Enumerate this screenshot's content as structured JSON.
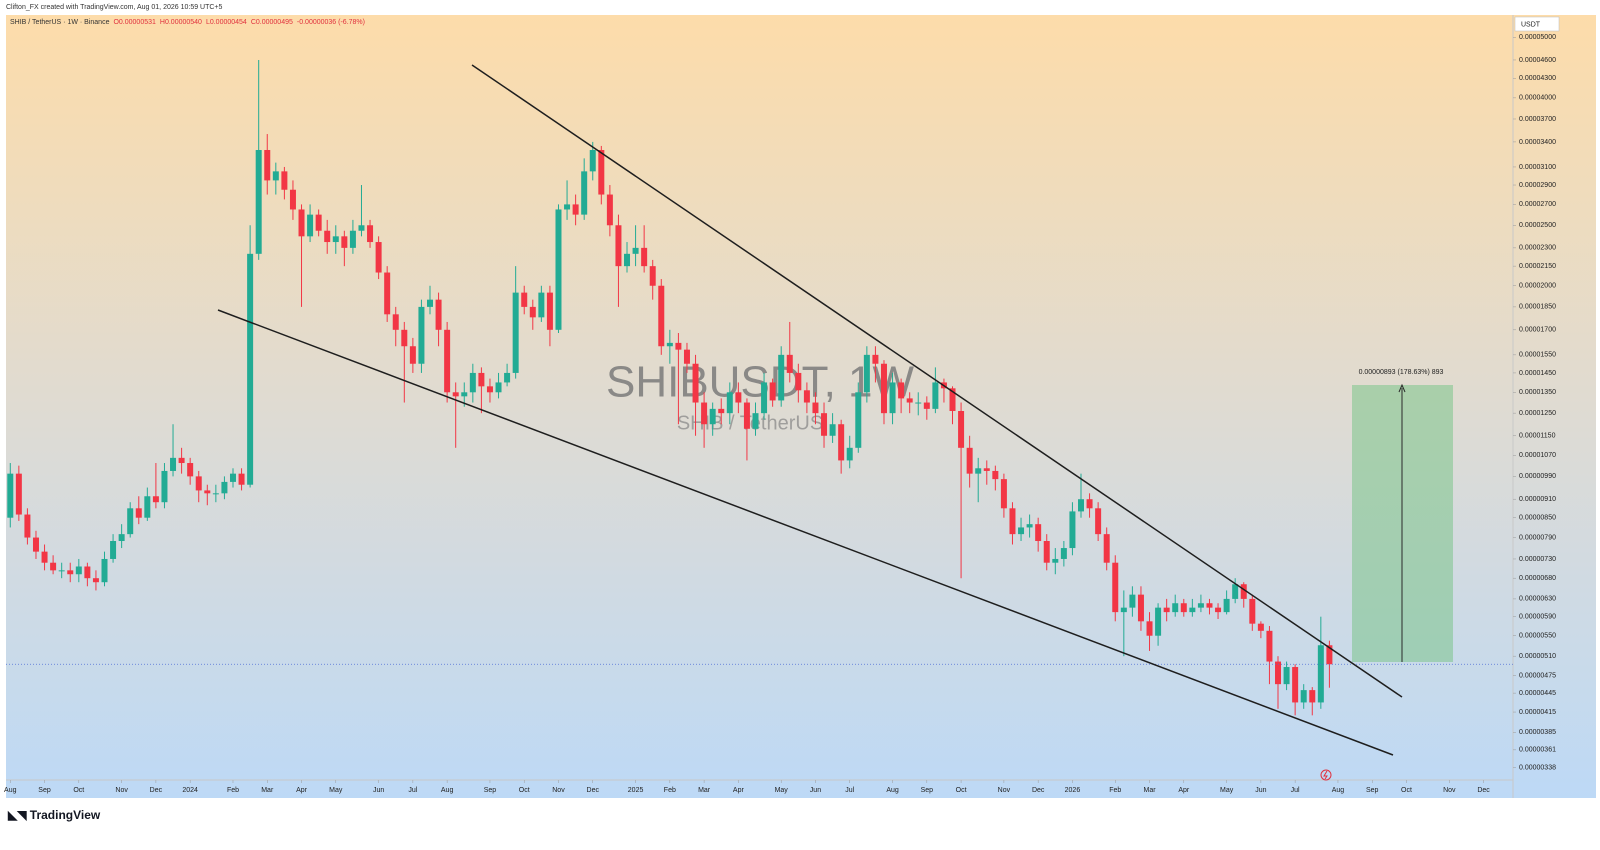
{
  "chart_data": {
    "type": "candlestick",
    "credit": "Clifton_FX created with TradingView.com, Aug 01, 2026 10:59 UTC+5",
    "symbol": "SHIB / TetherUS · 1W · Binance",
    "legend": {
      "open": "O0.00000531",
      "high": "H0.00000540",
      "low": "L0.00000454",
      "close": "C0.00000495",
      "change": "-0.00000036 (-6.78%)"
    },
    "watermark": "SHIBUSDT, 1W",
    "watermark_sub": "SHIB / TetherUS",
    "measure_label": "0.00000893 (178.63%) 893",
    "currency": "USDT",
    "brand": "TradingView",
    "log_scale": true,
    "up_color": "#22ab94",
    "down_color": "#f23645",
    "price_line_color": "#4f6fd6",
    "xlim": [
      -0.5,
      174.5
    ],
    "ylim": [
      3.23e-06,
      5.43e-05
    ],
    "xticks": [
      {
        "value": 0,
        "label": "Aug"
      },
      {
        "value": 4,
        "label": "Sep"
      },
      {
        "value": 8,
        "label": "Oct"
      },
      {
        "value": 13,
        "label": "Nov"
      },
      {
        "value": 17,
        "label": "Dec"
      },
      {
        "value": 21,
        "label": "2024"
      },
      {
        "value": 26,
        "label": "Feb"
      },
      {
        "value": 30,
        "label": "Mar"
      },
      {
        "value": 34,
        "label": "Apr"
      },
      {
        "value": 38,
        "label": "May"
      },
      {
        "value": 43,
        "label": "Jun"
      },
      {
        "value": 47,
        "label": "Jul"
      },
      {
        "value": 51,
        "label": "Aug"
      },
      {
        "value": 56,
        "label": "Sep"
      },
      {
        "value": 60,
        "label": "Oct"
      },
      {
        "value": 64,
        "label": "Nov"
      },
      {
        "value": 68,
        "label": "Dec"
      },
      {
        "value": 73,
        "label": "2025"
      },
      {
        "value": 77,
        "label": "Feb"
      },
      {
        "value": 81,
        "label": "Mar"
      },
      {
        "value": 85,
        "label": "Apr"
      },
      {
        "value": 90,
        "label": "May"
      },
      {
        "value": 94,
        "label": "Jun"
      },
      {
        "value": 98,
        "label": "Jul"
      },
      {
        "value": 103,
        "label": "Aug"
      },
      {
        "value": 107,
        "label": "Sep"
      },
      {
        "value": 111,
        "label": "Oct"
      },
      {
        "value": 116,
        "label": "Nov"
      },
      {
        "value": 120,
        "label": "Dec"
      },
      {
        "value": 124,
        "label": "2026"
      },
      {
        "value": 129,
        "label": "Feb"
      },
      {
        "value": 133,
        "label": "Mar"
      },
      {
        "value": 137,
        "label": "Apr"
      },
      {
        "value": 142,
        "label": "May"
      },
      {
        "value": 146,
        "label": "Jun"
      },
      {
        "value": 150,
        "label": "Jul"
      },
      {
        "value": 155,
        "label": "Aug"
      },
      {
        "value": 159,
        "label": "Sep"
      },
      {
        "value": 163,
        "label": "Oct"
      },
      {
        "value": 168,
        "label": "Nov"
      },
      {
        "value": 172,
        "label": "Dec"
      }
    ],
    "yticks": [
      {
        "value": 5e-05,
        "label": "0.00005000"
      },
      {
        "value": 4.6e-05,
        "label": "0.00004600"
      },
      {
        "value": 4.3e-05,
        "label": "0.00004300"
      },
      {
        "value": 4e-05,
        "label": "0.00004000"
      },
      {
        "value": 3.7e-05,
        "label": "0.00003700"
      },
      {
        "value": 3.4e-05,
        "label": "0.00003400"
      },
      {
        "value": 3.1e-05,
        "label": "0.00003100"
      },
      {
        "value": 2.9e-05,
        "label": "0.00002900"
      },
      {
        "value": 2.7e-05,
        "label": "0.00002700"
      },
      {
        "value": 2.5e-05,
        "label": "0.00002500"
      },
      {
        "value": 2.3e-05,
        "label": "0.00002300"
      },
      {
        "value": 2.15e-05,
        "label": "0.00002150"
      },
      {
        "value": 2e-05,
        "label": "0.00002000"
      },
      {
        "value": 1.85e-05,
        "label": "0.00001850"
      },
      {
        "value": 1.7e-05,
        "label": "0.00001700"
      },
      {
        "value": 1.55e-05,
        "label": "0.00001550"
      },
      {
        "value": 1.45e-05,
        "label": "0.00001450"
      },
      {
        "value": 1.35e-05,
        "label": "0.00001350"
      },
      {
        "value": 1.25e-05,
        "label": "0.00001250"
      },
      {
        "value": 1.15e-05,
        "label": "0.00001150"
      },
      {
        "value": 1.07e-05,
        "label": "0.00001070"
      },
      {
        "value": 9.9e-06,
        "label": "0.00000990"
      },
      {
        "value": 9.1e-06,
        "label": "0.00000910"
      },
      {
        "value": 8.5e-06,
        "label": "0.00000850"
      },
      {
        "value": 7.9e-06,
        "label": "0.00000790"
      },
      {
        "value": 7.3e-06,
        "label": "0.00000730"
      },
      {
        "value": 6.8e-06,
        "label": "0.00000680"
      },
      {
        "value": 6.3e-06,
        "label": "0.00000630"
      },
      {
        "value": 5.9e-06,
        "label": "0.00000590"
      },
      {
        "value": 5.5e-06,
        "label": "0.00000550"
      },
      {
        "value": 5.1e-06,
        "label": "0.00000510"
      },
      {
        "value": 4.75e-06,
        "label": "0.00000475"
      },
      {
        "value": 4.45e-06,
        "label": "0.00000445"
      },
      {
        "value": 4.15e-06,
        "label": "0.00000415"
      },
      {
        "value": 3.85e-06,
        "label": "0.00000385"
      },
      {
        "value": 3.61e-06,
        "label": "0.00000361"
      },
      {
        "value": 3.38e-06,
        "label": "0.00000338"
      }
    ],
    "open": [
      8.5e-06,
      1e-05,
      8.6e-06,
      7.9e-06,
      7.5e-06,
      7.2e-06,
      7e-06,
      7e-06,
      6.9e-06,
      7.1e-06,
      6.8e-06,
      6.7e-06,
      7.3e-06,
      7.8e-06,
      8e-06,
      8.8e-06,
      8.5e-06,
      9.2e-06,
      9e-06,
      1.01e-05,
      1.06e-05,
      1.04e-05,
      9.9e-06,
      9.4e-06,
      9.3e-06,
      9.3e-06,
      9.7e-06,
      1e-05,
      9.6e-06,
      2.25e-05,
      3.3e-05,
      2.95e-05,
      3.05e-05,
      2.85e-05,
      2.65e-05,
      2.4e-05,
      2.6e-05,
      2.45e-05,
      2.35e-05,
      2.4e-05,
      2.3e-05,
      2.45e-05,
      2.5e-05,
      2.35e-05,
      2.1e-05,
      1.8e-05,
      1.7e-05,
      1.6e-05,
      1.5e-05,
      1.85e-05,
      1.9e-05,
      1.7e-05,
      1.35e-05,
      1.33e-05,
      1.35e-05,
      1.45e-05,
      1.38e-05,
      1.35e-05,
      1.4e-05,
      1.45e-05,
      1.95e-05,
      1.85e-05,
      1.78e-05,
      1.95e-05,
      1.7e-05,
      2.65e-05,
      2.7e-05,
      2.6e-05,
      3.05e-05,
      3.3e-05,
      2.8e-05,
      2.5e-05,
      2.15e-05,
      2.25e-05,
      2.3e-05,
      2.15e-05,
      2e-05,
      1.6e-05,
      1.62e-05,
      1.58e-05,
      1.5e-05,
      1.3e-05,
      1.2e-05,
      1.27e-05,
      1.25e-05,
      1.35e-05,
      1.3e-05,
      1.18e-05,
      1.25e-05,
      1.4e-05,
      1.31e-05,
      1.55e-05,
      1.45e-05,
      1.36e-05,
      1.3e-05,
      1.25e-05,
      1.15e-05,
      1.2e-05,
      1.05e-05,
      1.1e-05,
      1.35e-05,
      1.55e-05,
      1.5e-05,
      1.25e-05,
      1.4e-05,
      1.32e-05,
      1.3e-05,
      1.3e-05,
      1.27e-05,
      1.4e-05,
      1.37e-05,
      1.26e-05,
      1.1e-05,
      1e-05,
      1.02e-05,
      1.01e-05,
      9.8e-06,
      8.8e-06,
      8e-06,
      8.2e-06,
      8.3e-06,
      7.8e-06,
      7.2e-06,
      7.3e-06,
      7.6e-06,
      8.7e-06,
      9.1e-06,
      8.8e-06,
      8e-06,
      7.2e-06,
      6e-06,
      6.1e-06,
      6.4e-06,
      5.8e-06,
      5.5e-06,
      6.1e-06,
      6e-06,
      6.2e-06,
      6e-06,
      6.1e-06,
      6.2e-06,
      6.1e-06,
      6e-06,
      6.3e-06,
      6.65e-06,
      6.3e-06,
      5.75e-06,
      5.6e-06,
      5e-06,
      4.6e-06,
      4.9e-06,
      4.3e-06,
      4.5e-06,
      4.3e-06,
      5.31e-06
    ],
    "high": [
      1.04e-05,
      1.03e-05,
      8.8e-06,
      8.1e-06,
      7.7e-06,
      7.4e-06,
      7.2e-06,
      7.2e-06,
      7.3e-06,
      7.2e-06,
      7e-06,
      7.5e-06,
      8e-06,
      8.3e-06,
      9e-06,
      9.2e-06,
      9.5e-06,
      1.04e-05,
      1.04e-05,
      1.2e-05,
      1.1e-05,
      1.06e-05,
      1.01e-05,
      9.6e-06,
      9.6e-06,
      9.9e-06,
      1.02e-05,
      1.02e-05,
      2.5e-05,
      4.6e-05,
      3.5e-05,
      3.15e-05,
      3.1e-05,
      2.95e-05,
      2.7e-05,
      2.7e-05,
      2.65e-05,
      2.55e-05,
      2.5e-05,
      2.45e-05,
      2.55e-05,
      2.9e-05,
      2.55e-05,
      2.4e-05,
      2.15e-05,
      1.85e-05,
      1.75e-05,
      1.65e-05,
      1.9e-05,
      2e-05,
      1.95e-05,
      1.75e-05,
      1.4e-05,
      1.4e-05,
      1.5e-05,
      1.48e-05,
      1.42e-05,
      1.45e-05,
      1.5e-05,
      2.15e-05,
      2e-05,
      1.9e-05,
      2e-05,
      2e-05,
      2.7e-05,
      2.95e-05,
      2.8e-05,
      3.2e-05,
      3.4e-05,
      3.35e-05,
      2.9e-05,
      2.6e-05,
      2.35e-05,
      2.5e-05,
      2.5e-05,
      2.2e-05,
      2.05e-05,
      1.7e-05,
      1.68e-05,
      1.62e-05,
      1.55e-05,
      1.35e-05,
      1.3e-05,
      1.32e-05,
      1.4e-05,
      1.4e-05,
      1.32e-05,
      1.3e-05,
      1.45e-05,
      1.42e-05,
      1.6e-05,
      1.75e-05,
      1.5e-05,
      1.4e-05,
      1.35e-05,
      1.3e-05,
      1.25e-05,
      1.22e-05,
      1.15e-05,
      1.4e-05,
      1.6e-05,
      1.6e-05,
      1.52e-05,
      1.45e-05,
      1.42e-05,
      1.35e-05,
      1.35e-05,
      1.33e-05,
      1.48e-05,
      1.42e-05,
      1.38e-05,
      1.3e-05,
      1.15e-05,
      1.06e-05,
      1.05e-05,
      1.03e-05,
      1e-05,
      9e-06,
      8.5e-06,
      8.6e-06,
      8.5e-06,
      8e-06,
      7.6e-06,
      7.8e-06,
      9e-06,
      1e-05,
      9.3e-06,
      9e-06,
      8.2e-06,
      7.4e-06,
      6.5e-06,
      6.6e-06,
      6.6e-06,
      6e-06,
      6.2e-06,
      6.3e-06,
      6.4e-06,
      6.3e-06,
      6.3e-06,
      6.4e-06,
      6.3e-06,
      6.2e-06,
      6.5e-06,
      6.8e-06,
      6.7e-06,
      6.4e-06,
      5.8e-06,
      5.7e-06,
      5.1e-06,
      5e-06,
      4.95e-06,
      4.6e-06,
      4.55e-06,
      5.9e-06,
      5.4e-06
    ],
    "low": [
      8.2e-06,
      8.4e-06,
      7.7e-06,
      7.3e-06,
      7e-06,
      6.9e-06,
      6.8e-06,
      6.7e-06,
      6.7e-06,
      6.6e-06,
      6.5e-06,
      6.6e-06,
      7.2e-06,
      7.6e-06,
      7.9e-06,
      8.3e-06,
      8.4e-06,
      8.8e-06,
      8.8e-06,
      9.9e-06,
      1e-05,
      9.6e-06,
      9e-06,
      8.9e-06,
      9e-06,
      9.1e-06,
      9.5e-06,
      9.4e-06,
      9.5e-06,
      2.2e-05,
      2.8e-05,
      2.8e-05,
      2.75e-05,
      2.55e-05,
      1.85e-05,
      2.35e-05,
      2.4e-05,
      2.25e-05,
      2.25e-05,
      2.15e-05,
      2.25e-05,
      2.4e-05,
      2.3e-05,
      2.05e-05,
      1.75e-05,
      1.6e-05,
      1.3e-05,
      1.45e-05,
      1.45e-05,
      1.8e-05,
      1.6e-05,
      1.3e-05,
      1.1e-05,
      1.28e-05,
      1.3e-05,
      1.25e-05,
      1.3e-05,
      1.32e-05,
      1.38e-05,
      1.42e-05,
      1.8e-05,
      1.7e-05,
      1.75e-05,
      1.6e-05,
      1.68e-05,
      2.55e-05,
      2.5e-05,
      2.55e-05,
      2.95e-05,
      2.7e-05,
      2.4e-05,
      1.85e-05,
      2.1e-05,
      2.15e-05,
      2.1e-05,
      1.9e-05,
      1.55e-05,
      1.5e-05,
      1.2e-05,
      1.45e-05,
      1.15e-05,
      1.1e-05,
      1.15e-05,
      1.2e-05,
      1.2e-05,
      1.25e-05,
      1.05e-05,
      1.15e-05,
      1.22e-05,
      1.28e-05,
      1.28e-05,
      1.4e-05,
      1.3e-05,
      1.25e-05,
      1.2e-05,
      1.1e-05,
      1.12e-05,
      1e-05,
      1.02e-05,
      1.08e-05,
      1.3e-05,
      1.4e-05,
      1.2e-05,
      1.2e-05,
      1.25e-05,
      1.25e-05,
      1.24e-05,
      1.22e-05,
      1.25e-05,
      1.3e-05,
      1.2e-05,
      6.8e-06,
      9.5e-06,
      9e-06,
      9.6e-06,
      9.4e-06,
      8.5e-06,
      7.7e-06,
      7.8e-06,
      7.9e-06,
      7.5e-06,
      7e-06,
      6.9e-06,
      7.1e-06,
      7.4e-06,
      8.5e-06,
      8.5e-06,
      7.8e-06,
      7e-06,
      5.8e-06,
      5.1e-06,
      5.9e-06,
      5.6e-06,
      5.2e-06,
      5.3e-06,
      5.8e-06,
      5.9e-06,
      5.9e-06,
      5.9e-06,
      6e-06,
      5.95e-06,
      5.85e-06,
      5.95e-06,
      6.2e-06,
      6.1e-06,
      5.6e-06,
      5.45e-06,
      4.6e-06,
      4.2e-06,
      4.5e-06,
      4.1e-06,
      4.2e-06,
      4.1e-06,
      4.2e-06,
      4.54e-06
    ],
    "close": [
      1e-05,
      8.6e-06,
      7.9e-06,
      7.5e-06,
      7.2e-06,
      7e-06,
      7e-06,
      6.9e-06,
      7.1e-06,
      6.8e-06,
      6.7e-06,
      7.3e-06,
      7.8e-06,
      8e-06,
      8.8e-06,
      8.5e-06,
      9.2e-06,
      9e-06,
      1.01e-05,
      1.06e-05,
      1.04e-05,
      9.9e-06,
      9.4e-06,
      9.3e-06,
      9.3e-06,
      9.7e-06,
      1e-05,
      9.6e-06,
      2.25e-05,
      3.3e-05,
      2.95e-05,
      3.05e-05,
      2.85e-05,
      2.65e-05,
      2.4e-05,
      2.6e-05,
      2.45e-05,
      2.35e-05,
      2.4e-05,
      2.3e-05,
      2.45e-05,
      2.5e-05,
      2.35e-05,
      2.1e-05,
      1.8e-05,
      1.7e-05,
      1.6e-05,
      1.5e-05,
      1.85e-05,
      1.9e-05,
      1.7e-05,
      1.35e-05,
      1.33e-05,
      1.35e-05,
      1.45e-05,
      1.38e-05,
      1.35e-05,
      1.4e-05,
      1.45e-05,
      1.95e-05,
      1.85e-05,
      1.78e-05,
      1.95e-05,
      1.7e-05,
      2.65e-05,
      2.7e-05,
      2.6e-05,
      3.05e-05,
      3.3e-05,
      2.8e-05,
      2.5e-05,
      2.15e-05,
      2.25e-05,
      2.3e-05,
      2.15e-05,
      2e-05,
      1.6e-05,
      1.62e-05,
      1.58e-05,
      1.5e-05,
      1.3e-05,
      1.2e-05,
      1.27e-05,
      1.25e-05,
      1.35e-05,
      1.3e-05,
      1.18e-05,
      1.25e-05,
      1.4e-05,
      1.31e-05,
      1.55e-05,
      1.45e-05,
      1.36e-05,
      1.3e-05,
      1.25e-05,
      1.15e-05,
      1.2e-05,
      1.05e-05,
      1.1e-05,
      1.35e-05,
      1.55e-05,
      1.5e-05,
      1.25e-05,
      1.4e-05,
      1.32e-05,
      1.3e-05,
      1.3e-05,
      1.27e-05,
      1.4e-05,
      1.37e-05,
      1.26e-05,
      1.1e-05,
      1e-05,
      1.02e-05,
      1.01e-05,
      9.8e-06,
      8.8e-06,
      8e-06,
      8.2e-06,
      8.3e-06,
      7.8e-06,
      7.2e-06,
      7.3e-06,
      7.6e-06,
      8.7e-06,
      9.1e-06,
      8.8e-06,
      8e-06,
      7.2e-06,
      6e-06,
      6.1e-06,
      6.4e-06,
      5.8e-06,
      5.5e-06,
      6.1e-06,
      6e-06,
      6.2e-06,
      6e-06,
      6.1e-06,
      6.2e-06,
      6.1e-06,
      6e-06,
      6.3e-06,
      6.65e-06,
      6.3e-06,
      5.75e-06,
      5.6e-06,
      5e-06,
      4.6e-06,
      4.9e-06,
      4.3e-06,
      4.5e-06,
      4.3e-06,
      5.31e-06,
      4.95e-06
    ]
  }
}
